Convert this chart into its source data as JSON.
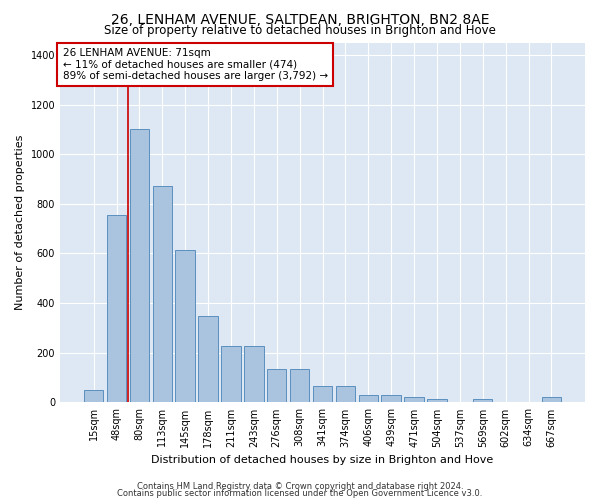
{
  "title": "26, LENHAM AVENUE, SALTDEAN, BRIGHTON, BN2 8AE",
  "subtitle": "Size of property relative to detached houses in Brighton and Hove",
  "xlabel": "Distribution of detached houses by size in Brighton and Hove",
  "ylabel": "Number of detached properties",
  "footer1": "Contains HM Land Registry data © Crown copyright and database right 2024.",
  "footer2": "Contains public sector information licensed under the Open Government Licence v3.0.",
  "annotation_line1": "26 LENHAM AVENUE: 71sqm",
  "annotation_line2": "← 11% of detached houses are smaller (474)",
  "annotation_line3": "89% of semi-detached houses are larger (3,792) →",
  "bar_labels": [
    "15sqm",
    "48sqm",
    "80sqm",
    "113sqm",
    "145sqm",
    "178sqm",
    "211sqm",
    "243sqm",
    "276sqm",
    "308sqm",
    "341sqm",
    "374sqm",
    "406sqm",
    "439sqm",
    "471sqm",
    "504sqm",
    "537sqm",
    "569sqm",
    "602sqm",
    "634sqm",
    "667sqm"
  ],
  "bar_values": [
    50,
    755,
    1100,
    870,
    615,
    350,
    228,
    228,
    135,
    135,
    65,
    65,
    30,
    30,
    20,
    15,
    0,
    15,
    0,
    0,
    20
  ],
  "bar_color": "#aac4e0",
  "bar_edge_color": "#5a8fbf",
  "marker_color": "#cc0000",
  "bg_color": "#dde8f4",
  "ylim": [
    0,
    1450
  ],
  "yticks": [
    0,
    200,
    400,
    600,
    800,
    1000,
    1200,
    1400
  ],
  "title_fontsize": 10,
  "subtitle_fontsize": 8.5,
  "ylabel_fontsize": 8,
  "xlabel_fontsize": 8,
  "tick_fontsize": 7,
  "footer_fontsize": 6,
  "annot_fontsize": 7.5
}
